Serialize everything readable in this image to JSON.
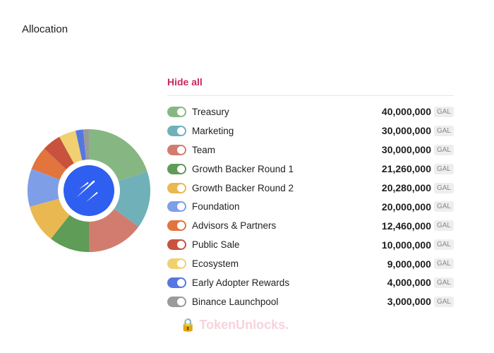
{
  "title": "Allocation",
  "hide_all": "Hide all",
  "unit": "GAL",
  "watermark": "TokenUnlocks.",
  "chart_data": {
    "type": "pie",
    "donut": true,
    "categories": [
      "Treasury",
      "Marketing",
      "Team",
      "Growth Backer Round 1",
      "Growth Backer Round 2",
      "Foundation",
      "Advisors & Partners",
      "Public Sale",
      "Ecosystem",
      "Early Adopter Rewards",
      "Binance Launchpool"
    ],
    "values": [
      40000000,
      30000000,
      30000000,
      21260000,
      20280000,
      20000000,
      12460000,
      10000000,
      9000000,
      4000000,
      3000000
    ],
    "colors": [
      "#86b783",
      "#6fb0b9",
      "#d27c70",
      "#5e9c58",
      "#e9b850",
      "#7f9ee8",
      "#e2743d",
      "#c8523e",
      "#f0d070",
      "#5577e0",
      "#9a9a9a"
    ]
  },
  "items": [
    {
      "label": "Treasury",
      "value": "40,000,000",
      "color": "#86b783"
    },
    {
      "label": "Marketing",
      "value": "30,000,000",
      "color": "#6fb0b9"
    },
    {
      "label": "Team",
      "value": "30,000,000",
      "color": "#d27c70"
    },
    {
      "label": "Growth Backer Round 1",
      "value": "21,260,000",
      "color": "#5e9c58"
    },
    {
      "label": "Growth Backer Round 2",
      "value": "20,280,000",
      "color": "#e9b850"
    },
    {
      "label": "Foundation",
      "value": "20,000,000",
      "color": "#7f9ee8"
    },
    {
      "label": "Advisors & Partners",
      "value": "12,460,000",
      "color": "#e2743d"
    },
    {
      "label": "Public Sale",
      "value": "10,000,000",
      "color": "#c8523e"
    },
    {
      "label": "Ecosystem",
      "value": "9,000,000",
      "color": "#f0d070"
    },
    {
      "label": "Early Adopter Rewards",
      "value": "4,000,000",
      "color": "#5577e0"
    },
    {
      "label": "Binance Launchpool",
      "value": "3,000,000",
      "color": "#9a9a9a"
    }
  ]
}
